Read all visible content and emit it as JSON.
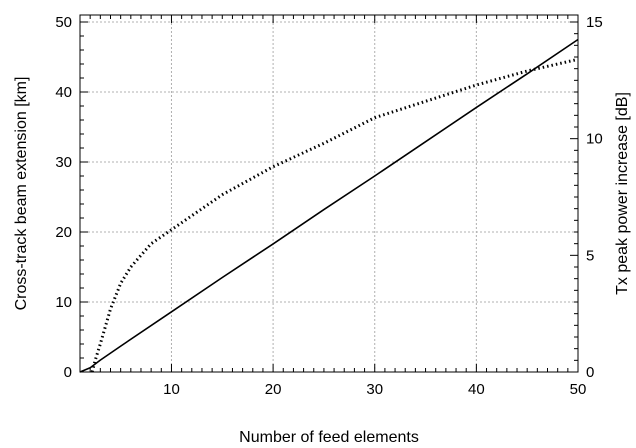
{
  "chart_data": {
    "type": "line",
    "title": "",
    "xlabel": "Number of feed elements",
    "ylabel": "Cross-track beam extension [km]",
    "y2label": "Tx peak power increase [dB]",
    "xlim": [
      1,
      50
    ],
    "ylim": [
      0,
      51
    ],
    "y2lim": [
      0,
      15.3
    ],
    "x_ticks": [
      10,
      20,
      30,
      40,
      50
    ],
    "y_ticks": [
      0,
      10,
      20,
      30,
      40,
      50
    ],
    "y2_ticks": [
      0,
      5,
      10,
      15
    ],
    "grid": true,
    "series": [
      {
        "axis": "left",
        "style": "solid",
        "color": "#000000",
        "x": [
          1,
          2,
          3,
          5,
          10,
          15,
          20,
          25,
          30,
          35,
          40,
          45,
          50
        ],
        "y": [
          0,
          0.6,
          1.7,
          3.7,
          8.6,
          13.5,
          18.3,
          23.2,
          28.0,
          32.9,
          37.8,
          42.6,
          47.5
        ]
      },
      {
        "axis": "right",
        "style": "dotted",
        "color": "#000000",
        "x": [
          2.2,
          2.5,
          3,
          4,
          5,
          6,
          8,
          10,
          12,
          15,
          20,
          25,
          30,
          35,
          40,
          45,
          50
        ],
        "y": [
          0,
          0.5,
          1.2,
          2.7,
          3.8,
          4.5,
          5.5,
          6.1,
          6.7,
          7.6,
          8.8,
          9.8,
          10.9,
          11.6,
          12.3,
          12.9,
          13.4
        ]
      }
    ]
  }
}
